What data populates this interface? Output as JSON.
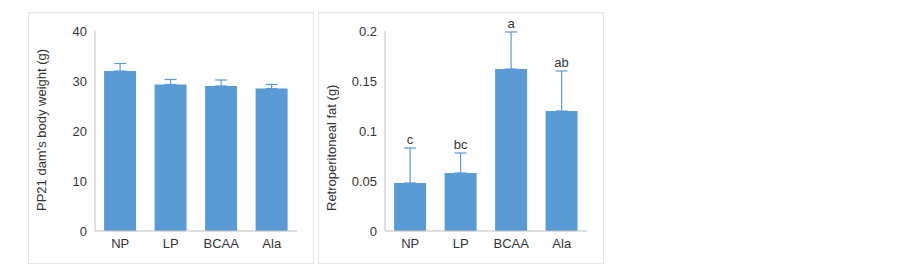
{
  "chart_data": [
    {
      "type": "bar",
      "y_label": "PP21 dam's body weight (g)",
      "categories": [
        "NP",
        "LP",
        "BCAA",
        "Ala"
      ],
      "values": [
        32,
        29.3,
        29,
        28.5
      ],
      "error": [
        1.5,
        1,
        1.2,
        0.8
      ],
      "color": "#5b9bd5",
      "ylim": [
        0,
        40
      ],
      "yticks": [
        0,
        10,
        20,
        30,
        40
      ],
      "grid": false
    },
    {
      "type": "bar",
      "y_label": "Retroperitoneal fat (g)",
      "categories": [
        "NP",
        "LP",
        "BCAA",
        "Ala"
      ],
      "values": [
        0.048,
        0.058,
        0.162,
        0.12
      ],
      "error": [
        0.035,
        0.02,
        0.037,
        0.04
      ],
      "annotations": [
        "c",
        "bc",
        "a",
        "ab"
      ],
      "color": "#5b9bd5",
      "ylim": [
        0,
        0.2
      ],
      "yticks": [
        0,
        0.05,
        0.1,
        0.15,
        0.2
      ],
      "grid": false
    }
  ]
}
